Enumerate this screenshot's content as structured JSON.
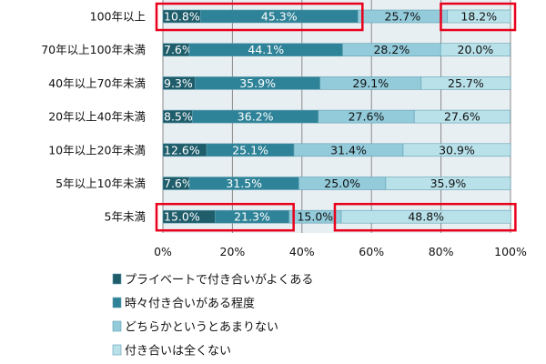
{
  "chart_data": {
    "type": "bar",
    "orientation": "horizontal",
    "stacked": true,
    "title": "",
    "xlabel": "",
    "ylabel": "",
    "xlim": [
      0,
      100
    ],
    "x_ticks": [
      "0%",
      "20%",
      "40%",
      "60%",
      "80%",
      "100%"
    ],
    "grid": true,
    "legend_position": "bottom",
    "categories": [
      "100年以上",
      "70年以上100年未満",
      "40年以上70年未満",
      "20年以上40年未満",
      "10年以上20年未満",
      "5年以上10年未満",
      "5年未満"
    ],
    "series": [
      {
        "name": "プライベートで付き合いがよくある",
        "color": "#1f5d6b",
        "label_color": "#ffffff",
        "values": [
          10.8,
          7.6,
          9.3,
          8.5,
          12.6,
          7.6,
          15.0
        ]
      },
      {
        "name": "時々付き合いがある程度",
        "color": "#2f8398",
        "label_color": "#ffffff",
        "values": [
          45.3,
          44.1,
          35.9,
          36.2,
          25.1,
          31.5,
          21.3
        ]
      },
      {
        "name": "どちらかというとあまりない",
        "color": "#93cbdb",
        "label_color": "#111111",
        "values": [
          25.7,
          28.2,
          29.1,
          27.6,
          31.4,
          25.0,
          15.0
        ]
      },
      {
        "name": "付き合いは全くない",
        "color": "#b9e1ea",
        "label_color": "#111111",
        "values": [
          18.2,
          20.0,
          25.7,
          27.6,
          30.9,
          35.9,
          48.8
        ]
      }
    ],
    "data_labels": [
      [
        "10.8%",
        "45.3%",
        "25.7%",
        "18.2%"
      ],
      [
        "7.6%",
        "44.1%",
        "28.2%",
        "20.0%"
      ],
      [
        "9.3%",
        "35.9%",
        "29.1%",
        "25.7%"
      ],
      [
        "8.5%",
        "36.2%",
        "27.6%",
        "27.6%"
      ],
      [
        "12.6%",
        "25.1%",
        "31.4%",
        "30.9%"
      ],
      [
        "7.6%",
        "31.5%",
        "25.0%",
        "35.9%"
      ],
      [
        "15.0%",
        "21.3%",
        "15.0%",
        "48.8%"
      ]
    ],
    "highlights": [
      {
        "category": 0,
        "series_from": 0,
        "series_to": 1
      },
      {
        "category": 0,
        "series_from": 3,
        "series_to": 3
      },
      {
        "category": 6,
        "series_from": 0,
        "series_to": 1
      },
      {
        "category": 6,
        "series_from": 3,
        "series_to": 3
      }
    ],
    "highlight_color": "#e8001c",
    "plot_bg": "#e8eff3",
    "grid_color": "#8a8a8a"
  }
}
